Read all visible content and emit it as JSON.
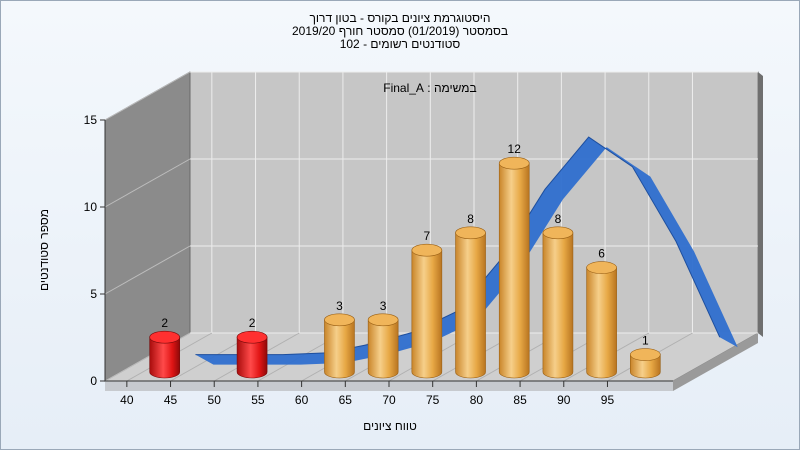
{
  "chart_data": {
    "type": "bar",
    "title_lines": [
      "היסטוגרמת ציונים בקורס - בטון דרוך",
      "בסמסטר  (01/2019)  סמסטר חורף 2019/20",
      "סטודנטים רשומים - 102"
    ],
    "annotation": "במשימה : Final_A",
    "xlabel": "טווח ציונים",
    "ylabel": "מספר סטודנטים",
    "ylim": [
      0,
      15
    ],
    "yticks": [
      0,
      5,
      10,
      15
    ],
    "xticks": [
      40,
      45,
      50,
      55,
      60,
      65,
      70,
      75,
      80,
      85,
      90,
      95
    ],
    "grid": true,
    "bars": [
      {
        "x": 42.5,
        "value": 2,
        "color": "red"
      },
      {
        "x": 52.5,
        "value": 2,
        "color": "red"
      },
      {
        "x": 62.5,
        "value": 3,
        "color": "orange"
      },
      {
        "x": 67.5,
        "value": 3,
        "color": "orange"
      },
      {
        "x": 72.5,
        "value": 7,
        "color": "orange"
      },
      {
        "x": 77.5,
        "value": 8,
        "color": "orange"
      },
      {
        "x": 82.5,
        "value": 12,
        "color": "orange"
      },
      {
        "x": 87.5,
        "value": 8,
        "color": "orange"
      },
      {
        "x": 92.5,
        "value": 6,
        "color": "orange"
      },
      {
        "x": 97.5,
        "value": 1,
        "color": "orange"
      }
    ],
    "curve": {
      "x": [
        42.5,
        47.5,
        52.5,
        57.5,
        62.5,
        67.5,
        72.5,
        77.5,
        82.5,
        87.5,
        92.5,
        97.5,
        102.5
      ],
      "y": [
        0,
        0,
        0,
        0.1,
        0.6,
        1.3,
        2.5,
        5.5,
        9.5,
        12.5,
        10.8,
        6.5,
        1.0
      ]
    },
    "colors": {
      "red": "#e01515",
      "orange": "#e7a845",
      "curve": "#2f6fcf",
      "plot_back": "#c6c6c6",
      "side_wall": "#8b8b8b",
      "floor": "#cfcfcf"
    }
  }
}
